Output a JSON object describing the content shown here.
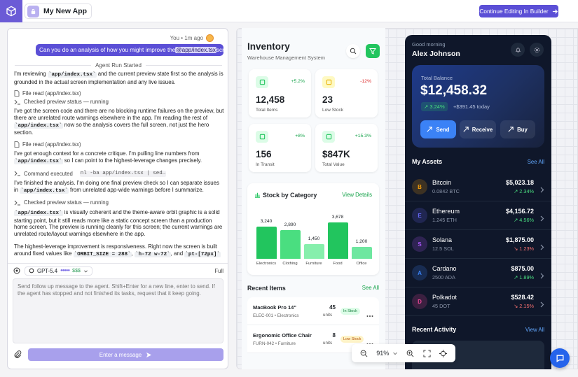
{
  "top_bar": {
    "app_name": "My New App",
    "continue_button": "Continue Editing In Builder"
  },
  "chat": {
    "user_meta": "You • 1m ago",
    "user_message": [
      "Can you do an analysis of how you might improve the ",
      "@app/index.tsx",
      " screen?"
    ],
    "run_started": "Agent Run Started",
    "items": [
      {
        "kind": "paragraph",
        "segments": [
          {
            "text": "I'm reviewing "
          },
          {
            "code": "`app/index.tsx`"
          },
          {
            "text": " and the current preview state first so the analysis is grounded in the actual screen implementation and any live issues."
          }
        ]
      },
      {
        "kind": "file",
        "label": "File read (app/index.tsx)"
      },
      {
        "kind": "terminal",
        "label": "Checked preview status — running"
      },
      {
        "kind": "paragraph",
        "segments": [
          {
            "text": "I've got the screen code and there are no blocking runtime failures on the preview, but there are unrelated route warnings elsewhere in the app. I'm reading the rest of "
          },
          {
            "code": "`app/index.tsx`"
          },
          {
            "text": " now so the analysis covers the full screen, not just the hero section."
          }
        ]
      },
      {
        "kind": "file",
        "label": "File read (app/index.tsx)"
      },
      {
        "kind": "paragraph",
        "segments": [
          {
            "text": "I've got enough context for a concrete critique. I'm pulling line numbers from "
          },
          {
            "code": "`app/index.tsx`"
          },
          {
            "text": " so I can point to the highest-leverage changes precisely."
          }
        ]
      },
      {
        "kind": "terminal",
        "label": "Command executed",
        "code": "nl -ba app/index.tsx | sed…"
      },
      {
        "kind": "paragraph",
        "segments": [
          {
            "text": "I've finished the analysis. I'm doing one final preview check so I can separate issues in "
          },
          {
            "code": "`app/index.tsx`"
          },
          {
            "text": " from unrelated app-wide warnings before I summarize."
          }
        ]
      },
      {
        "kind": "terminal",
        "label": "Checked preview status — running"
      },
      {
        "kind": "paragraph",
        "segments": [
          {
            "code": "`app/index.tsx`"
          },
          {
            "text": " is visually coherent and the theme-aware orbit graphic is a solid starting point, but it still reads more like a static concept screen than a production home screen. The preview is running cleanly for this screen; the current warnings are unrelated route/layout warnings elsewhere in the app."
          }
        ]
      },
      {
        "kind": "paragraph",
        "segments": [
          {
            "text": "The highest-leverage improvement is responsiveness. Right now the screen is built around fixed values like "
          },
          {
            "code": "`ORBIT_SIZE = 288`"
          },
          {
            "text": ", "
          },
          {
            "code": "`h-72 w-72`"
          },
          {
            "text": ", and "
          },
          {
            "code": "`pt-[72px]`"
          }
        ]
      }
    ],
    "model": "GPT-5.4",
    "model_dots": "●●●●●",
    "cost": "$$$",
    "mode": "Full",
    "placeholder": "Send follow up message to the agent. Shift+Enter for a new line, enter to send. If the agent has stopped and not finished its tasks, request that it keep going.",
    "send_button": "Enter a message"
  },
  "inventory": {
    "title": "Inventory",
    "subtitle": "Warehouse Management System",
    "stats": [
      {
        "value": "12,458",
        "label": "Total Items",
        "change": "+5.2%",
        "trend": "up",
        "accent": "#22c55e",
        "tint": "#dcfce7"
      },
      {
        "value": "23",
        "label": "Low Stock",
        "change": "-12%",
        "trend": "down",
        "accent": "#eab308",
        "tint": "#fef9c3"
      },
      {
        "value": "156",
        "label": "In Transit",
        "change": "+8%",
        "trend": "up",
        "accent": "#22c55e",
        "tint": "#dcfce7"
      },
      {
        "value": "$847K",
        "label": "Total Value",
        "change": "+15.3%",
        "trend": "up",
        "accent": "#22c55e",
        "tint": "#dcfce7"
      }
    ],
    "stock_chart": {
      "title": "Stock by Category",
      "link": "View Details",
      "categories": [
        "Electronics",
        "Clothing",
        "Furniture",
        "Food",
        "Office"
      ],
      "values": [
        3240,
        2890,
        1450,
        3678,
        1200
      ],
      "value_labels": [
        "3,240",
        "2,890",
        "1,450",
        "3,678",
        "1,200"
      ],
      "colors": [
        "#22c55e",
        "#4ade80",
        "#86efac",
        "#22c55e",
        "#6ee7a0"
      ]
    },
    "recent_title": "Recent Items",
    "recent_link": "See All",
    "items": [
      {
        "name": "MacBook Pro 14\"",
        "meta": "ELEC-001 • Electronics",
        "qty": "45",
        "unit": "units",
        "status": "In Stock",
        "status_kind": "ok"
      },
      {
        "name": "Ergonomic Office Chair",
        "meta": "FURN-042 • Furniture",
        "qty": "8",
        "unit": "units",
        "status": "Low Stock",
        "status_kind": "low"
      }
    ]
  },
  "wallet": {
    "greeting": "Good morning",
    "user": "Alex Johnson",
    "balance_label": "Total Balance",
    "balance": "$12,458.32",
    "balance_change": "↗ 3.24%",
    "today": "+$391.45 today",
    "actions": [
      "Send",
      "Receive",
      "Buy"
    ],
    "assets_title": "My Assets",
    "assets_link": "See All",
    "assets": [
      {
        "initial": "B",
        "name": "Bitcoin",
        "amount": "0.0842 BTC",
        "price": "$5,023.18",
        "change": "↗ 2.34%",
        "trend": "up",
        "color": "#f59e0b"
      },
      {
        "initial": "E",
        "name": "Ethereum",
        "amount": "1.245 ETH",
        "price": "$4,156.72",
        "change": "↗ 4.56%",
        "trend": "up",
        "color": "#6366f1"
      },
      {
        "initial": "S",
        "name": "Solana",
        "amount": "12.5 SOL",
        "price": "$1,875.00",
        "change": "↘ 1.23%",
        "trend": "down",
        "color": "#a855f7"
      },
      {
        "initial": "A",
        "name": "Cardano",
        "amount": "2500 ADA",
        "price": "$875.00",
        "change": "↗ 1.89%",
        "trend": "up",
        "color": "#3b82f6"
      },
      {
        "initial": "D",
        "name": "Polkadot",
        "amount": "45 DOT",
        "price": "$528.42",
        "change": "↘ 2.15%",
        "trend": "down",
        "color": "#ec4899"
      }
    ],
    "activity_title": "Recent Activity",
    "activity_link": "View All"
  },
  "zoom": {
    "level": "91%"
  }
}
